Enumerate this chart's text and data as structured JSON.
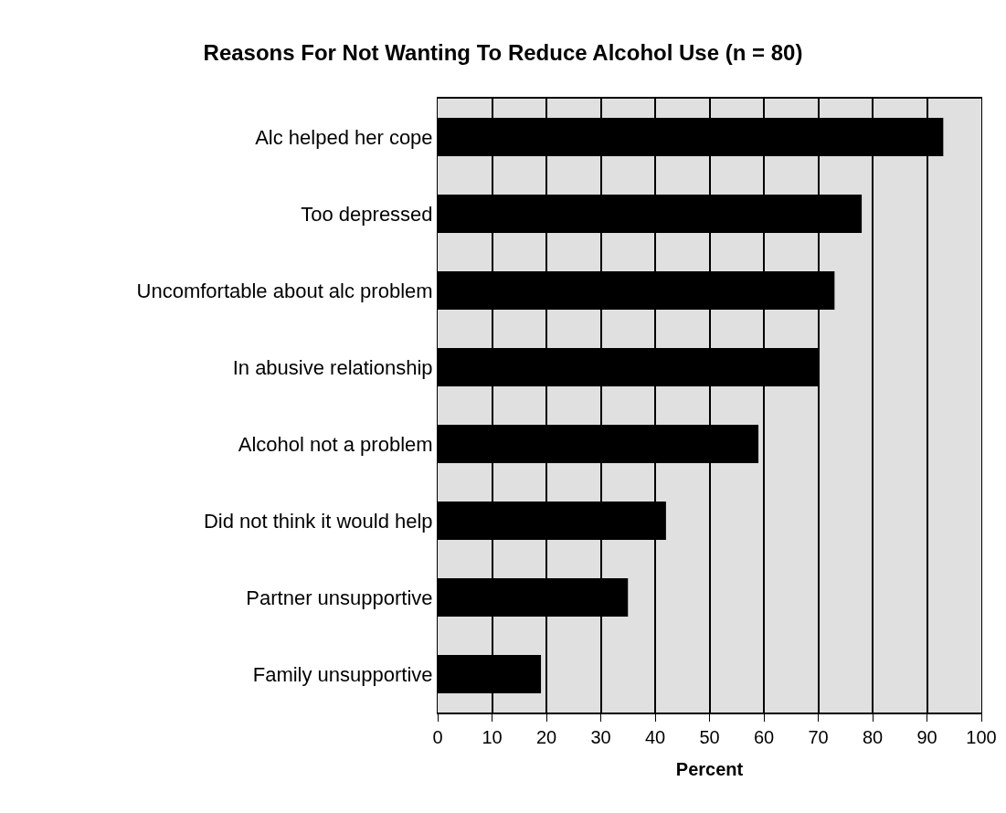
{
  "chart_data": {
    "type": "bar",
    "orientation": "horizontal",
    "title": "Reasons For Not Wanting To Reduce Alcohol Use (n = 80)",
    "xlabel": "Percent",
    "categories": [
      "Alc helped her cope",
      "Too depressed",
      "Uncomfortable about alc problem",
      "In abusive relationship",
      "Alcohol not a problem",
      "Did not think it would help",
      "Partner unsupportive",
      "Family unsupportive"
    ],
    "values": [
      93,
      78,
      73,
      70,
      59,
      42,
      35,
      19
    ],
    "color": "#000000",
    "xlim": [
      0,
      100
    ],
    "xticks": [
      0,
      10,
      20,
      30,
      40,
      50,
      60,
      70,
      80,
      90,
      100
    ],
    "grid": "x"
  }
}
